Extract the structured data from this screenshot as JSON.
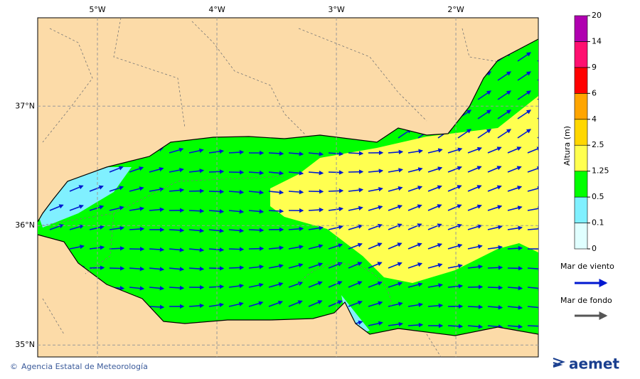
{
  "map": {
    "xlim": [
      -5.5,
      -1.31
    ],
    "ylim": [
      34.9,
      37.74
    ],
    "xticks": [
      {
        "value": -5,
        "label": "5°W"
      },
      {
        "value": -4,
        "label": "4°W"
      },
      {
        "value": -3,
        "label": "3°W"
      },
      {
        "value": -2,
        "label": "2°W"
      }
    ],
    "yticks": [
      {
        "value": 37,
        "label": "37°N"
      },
      {
        "value": 36,
        "label": "36°N"
      },
      {
        "value": 35,
        "label": "35°N"
      }
    ]
  },
  "legend": {
    "title": "Altura (m)",
    "levels": [
      0,
      0.1,
      0.5,
      1.25,
      2.5,
      4,
      6,
      9,
      14,
      20
    ],
    "colors": [
      "#e0ffff",
      "#80f0ff",
      "#00ff00",
      "#ffff50",
      "#ffd700",
      "#ffa500",
      "#ff0000",
      "#ff1070",
      "#b000b0"
    ],
    "wind_sea": "Mar de viento",
    "swell": "Mar de fondo"
  },
  "footer": {
    "credit": "Agencia Estatal de Meteorología",
    "logo": "aemet"
  }
}
